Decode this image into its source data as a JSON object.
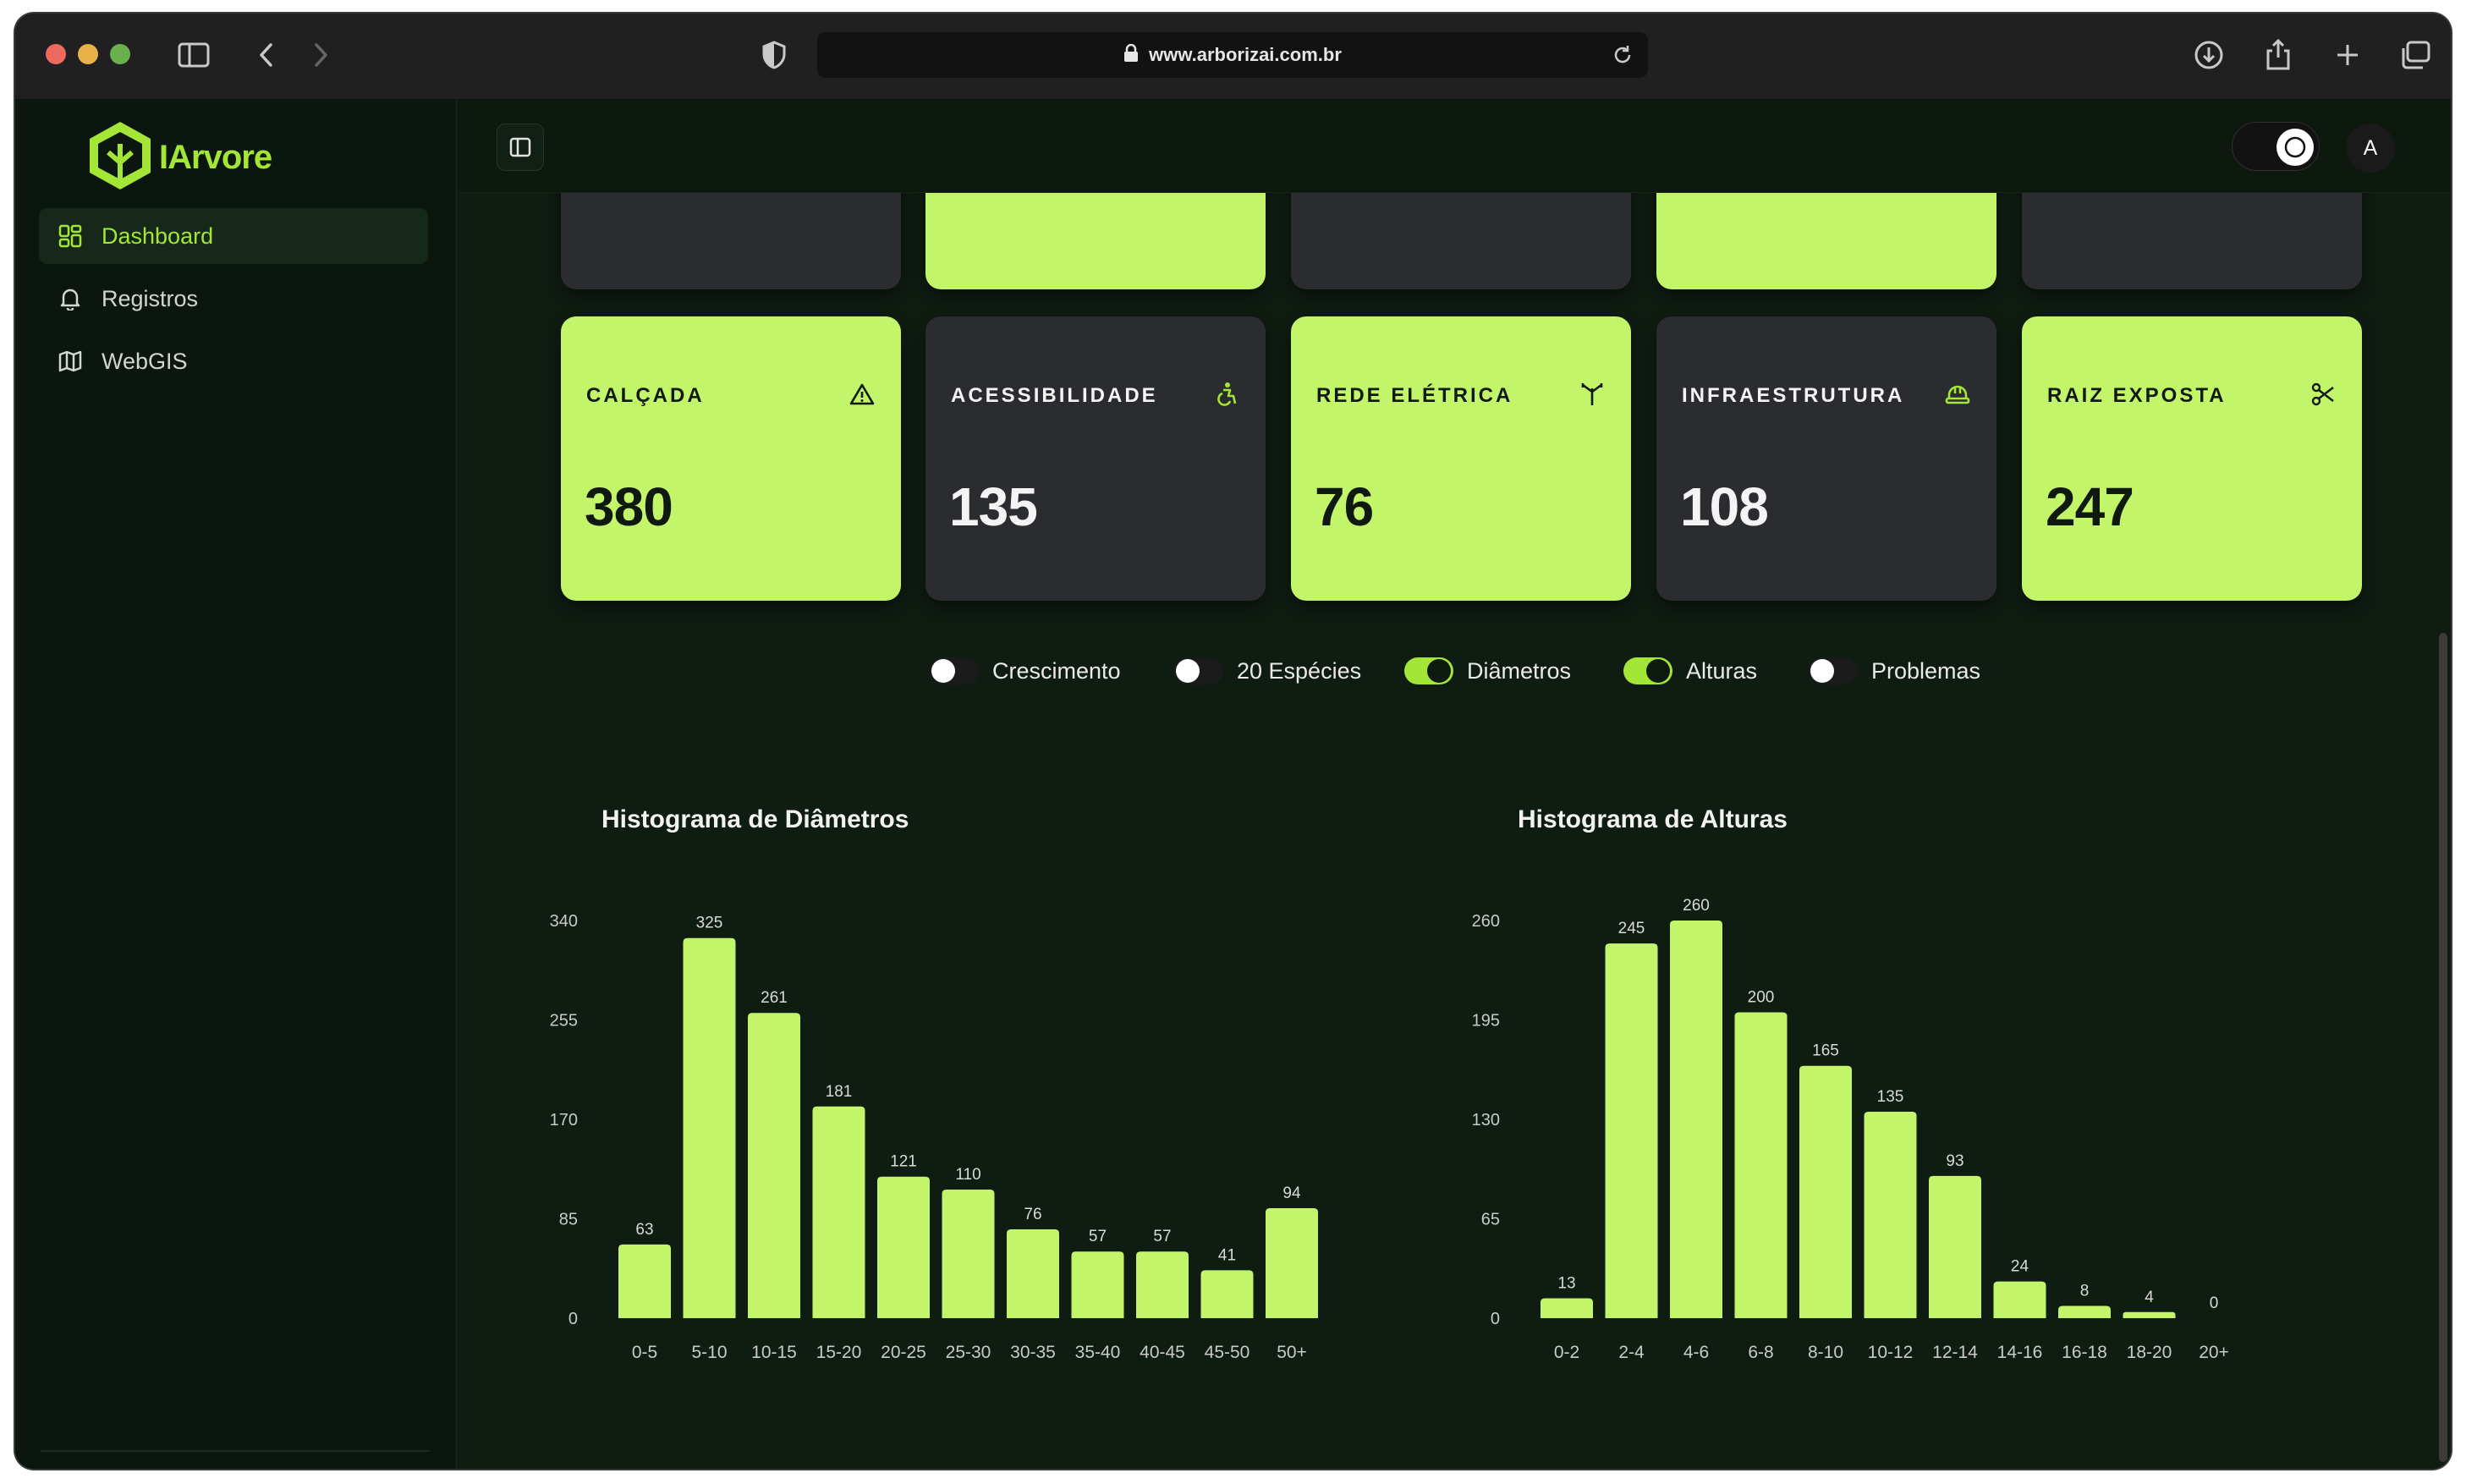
{
  "browser": {
    "url": "www.arborizai.com.br"
  },
  "sidebar": {
    "logo_text": "IArvore",
    "items": [
      {
        "label": "Dashboard",
        "icon": "grid-icon",
        "active": true
      },
      {
        "label": "Registros",
        "icon": "bell-icon",
        "active": false
      },
      {
        "label": "WebGIS",
        "icon": "map-icon",
        "active": false
      }
    ]
  },
  "header": {
    "avatar_initial": "A"
  },
  "cards": [
    {
      "title": "CALÇADA",
      "value": "380",
      "style": "light",
      "icon": "warning-icon"
    },
    {
      "title": "ACESSIBILIDADE",
      "value": "135",
      "style": "dark",
      "icon": "accessibility-icon"
    },
    {
      "title": "REDE ELÉTRICA",
      "value": "76",
      "style": "light",
      "icon": "antenna-icon"
    },
    {
      "title": "INFRAESTRUTURA",
      "value": "108",
      "style": "dark",
      "icon": "helmet-icon"
    },
    {
      "title": "RAIZ EXPOSTA",
      "value": "247",
      "style": "light",
      "icon": "scissors-icon"
    }
  ],
  "toggles": [
    {
      "label": "Crescimento",
      "on": false
    },
    {
      "label": "20 Espécies",
      "on": false
    },
    {
      "label": "Diâmetros",
      "on": true
    },
    {
      "label": "Alturas",
      "on": true
    },
    {
      "label": "Problemas",
      "on": false
    }
  ],
  "colors": {
    "accent": "#c3f56a",
    "accent_strong": "#a3e635",
    "card_dark": "#2a2c30",
    "background": "#0f1c12"
  },
  "chart_data": [
    {
      "type": "bar",
      "title": "Histograma de Diâmetros",
      "categories": [
        "0-5",
        "5-10",
        "10-15",
        "15-20",
        "20-25",
        "25-30",
        "30-35",
        "35-40",
        "40-45",
        "45-50",
        "50+"
      ],
      "values": [
        63,
        325,
        261,
        181,
        121,
        110,
        76,
        57,
        57,
        41,
        94
      ],
      "yticks": [
        0,
        85,
        170,
        255,
        340
      ],
      "ylim": [
        0,
        340
      ],
      "grid": false,
      "legend": "none"
    },
    {
      "type": "bar",
      "title": "Histograma de Alturas",
      "categories": [
        "0-2",
        "2-4",
        "4-6",
        "6-8",
        "8-10",
        "10-12",
        "12-14",
        "14-16",
        "16-18",
        "18-20",
        "20+"
      ],
      "values": [
        13,
        245,
        260,
        200,
        165,
        135,
        93,
        24,
        8,
        4,
        0
      ],
      "yticks": [
        0,
        65,
        130,
        195,
        260
      ],
      "ylim": [
        0,
        260
      ],
      "grid": false,
      "legend": "none"
    }
  ]
}
